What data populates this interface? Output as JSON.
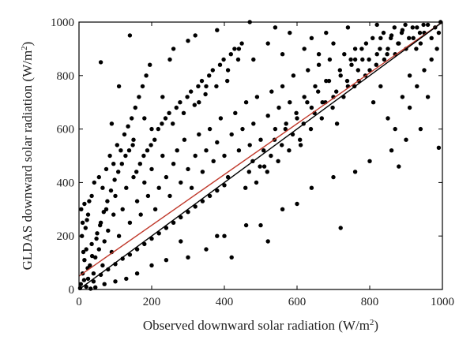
{
  "chart_data": {
    "type": "scatter",
    "xlabel": "Observed downward solar radiation (W/m",
    "xlabel_sup": "2",
    "xlabel_end": ")",
    "ylabel": "GLDAS downward solar radiation (W/m",
    "ylabel_sup": "2",
    "ylabel_end": ")",
    "xlim": [
      0,
      1000
    ],
    "ylim": [
      0,
      1000
    ],
    "x_ticks": [
      0,
      200,
      400,
      600,
      800,
      1000
    ],
    "y_ticks": [
      0,
      200,
      400,
      600,
      800,
      1000
    ],
    "x_tick_labels": [
      "0",
      "200",
      "400",
      "600",
      "800",
      "1000"
    ],
    "y_tick_labels": [
      "0",
      "200",
      "400",
      "600",
      "800",
      "1000"
    ],
    "grid": false,
    "legend": "none",
    "point_color": "#000000",
    "series": [
      {
        "values_xy": [
          [
            5,
            20
          ],
          [
            10,
            60
          ],
          [
            15,
            110
          ],
          [
            20,
            150
          ],
          [
            8,
            200
          ],
          [
            25,
            40
          ],
          [
            30,
            90
          ],
          [
            12,
            140
          ],
          [
            18,
            230
          ],
          [
            35,
            170
          ],
          [
            40,
            60
          ],
          [
            45,
            120
          ],
          [
            50,
            210
          ],
          [
            22,
            260
          ],
          [
            6,
            300
          ],
          [
            28,
            330
          ],
          [
            55,
            150
          ],
          [
            60,
            250
          ],
          [
            65,
            90
          ],
          [
            70,
            180
          ],
          [
            75,
            300
          ],
          [
            80,
            220
          ],
          [
            90,
            140
          ],
          [
            95,
            280
          ],
          [
            100,
            350
          ],
          [
            110,
            200
          ],
          [
            120,
            300
          ],
          [
            130,
            380
          ],
          [
            140,
            250
          ],
          [
            150,
            420
          ],
          [
            160,
            330
          ],
          [
            170,
            280
          ],
          [
            180,
            400
          ],
          [
            190,
            350
          ],
          [
            200,
            450
          ],
          [
            210,
            300
          ],
          [
            220,
            380
          ],
          [
            230,
            500
          ],
          [
            240,
            420
          ],
          [
            250,
            350
          ],
          [
            260,
            470
          ],
          [
            270,
            520
          ],
          [
            280,
            400
          ],
          [
            290,
            560
          ],
          [
            300,
            450
          ],
          [
            310,
            380
          ],
          [
            320,
            500
          ],
          [
            330,
            580
          ],
          [
            340,
            440
          ],
          [
            350,
            520
          ],
          [
            360,
            600
          ],
          [
            370,
            480
          ],
          [
            380,
            550
          ],
          [
            390,
            640
          ],
          [
            400,
            500
          ],
          [
            410,
            420
          ],
          [
            420,
            580
          ],
          [
            430,
            660
          ],
          [
            440,
            520
          ],
          [
            450,
            600
          ],
          [
            460,
            700
          ],
          [
            470,
            540
          ],
          [
            480,
            620
          ],
          [
            490,
            720
          ],
          [
            500,
            560
          ],
          [
            510,
            460
          ],
          [
            520,
            650
          ],
          [
            530,
            740
          ],
          [
            540,
            600
          ],
          [
            550,
            680
          ],
          [
            560,
            760
          ],
          [
            570,
            620
          ],
          [
            580,
            700
          ],
          [
            590,
            800
          ],
          [
            600,
            640
          ],
          [
            610,
            540
          ],
          [
            620,
            720
          ],
          [
            630,
            820
          ],
          [
            640,
            680
          ],
          [
            650,
            760
          ],
          [
            660,
            840
          ],
          [
            670,
            700
          ],
          [
            680,
            780
          ],
          [
            690,
            860
          ],
          [
            700,
            720
          ],
          [
            710,
            620
          ],
          [
            720,
            800
          ],
          [
            730,
            880
          ],
          [
            740,
            760
          ],
          [
            750,
            840
          ],
          [
            760,
            900
          ],
          [
            770,
            780
          ],
          [
            780,
            860
          ],
          [
            790,
            920
          ],
          [
            800,
            820
          ],
          [
            810,
            700
          ],
          [
            820,
            880
          ],
          [
            830,
            940
          ],
          [
            840,
            860
          ],
          [
            850,
            900
          ],
          [
            860,
            950
          ],
          [
            870,
            880
          ],
          [
            880,
            920
          ],
          [
            890,
            970
          ],
          [
            900,
            900
          ],
          [
            910,
            800
          ],
          [
            920,
            940
          ],
          [
            930,
            980
          ],
          [
            940,
            920
          ],
          [
            950,
            960
          ],
          [
            960,
            990
          ],
          [
            970,
            940
          ],
          [
            980,
            980
          ],
          [
            990,
            960
          ],
          [
            995,
            1000
          ],
          [
            140,
            950
          ],
          [
            250,
            860
          ],
          [
            300,
            930
          ],
          [
            440,
            900
          ],
          [
            520,
            920
          ],
          [
            60,
            850
          ],
          [
            110,
            760
          ],
          [
            180,
            640
          ],
          [
            90,
            620
          ],
          [
            230,
            720
          ],
          [
            350,
            760
          ],
          [
            150,
            560
          ],
          [
            200,
            600
          ],
          [
            410,
            820
          ],
          [
            330,
            700
          ],
          [
            480,
            860
          ],
          [
            560,
            880
          ],
          [
            620,
            900
          ],
          [
            680,
            960
          ],
          [
            740,
            980
          ],
          [
            820,
            990
          ],
          [
            300,
            120
          ],
          [
            400,
            200
          ],
          [
            500,
            240
          ],
          [
            560,
            300
          ],
          [
            640,
            380
          ],
          [
            700,
            420
          ],
          [
            760,
            440
          ],
          [
            800,
            480
          ],
          [
            860,
            520
          ],
          [
            900,
            560
          ],
          [
            940,
            600
          ],
          [
            990,
            530
          ],
          [
            880,
            460
          ],
          [
            720,
            230
          ],
          [
            600,
            320
          ],
          [
            520,
            180
          ],
          [
            460,
            240
          ],
          [
            380,
            200
          ],
          [
            350,
            150
          ],
          [
            420,
            120
          ],
          [
            280,
            180
          ],
          [
            240,
            110
          ],
          [
            200,
            90
          ],
          [
            160,
            60
          ],
          [
            130,
            40
          ],
          [
            100,
            30
          ],
          [
            70,
            20
          ],
          [
            45,
            8
          ],
          [
            32,
            3
          ],
          [
            3,
            5
          ],
          [
            14,
            35
          ],
          [
            24,
            80
          ],
          [
            36,
            125
          ],
          [
            48,
            190
          ],
          [
            58,
            240
          ],
          [
            68,
            290
          ],
          [
            78,
            330
          ],
          [
            88,
            370
          ],
          [
            98,
            410
          ],
          [
            108,
            440
          ],
          [
            118,
            470
          ],
          [
            128,
            500
          ],
          [
            138,
            520
          ],
          [
            148,
            540
          ],
          [
            158,
            440
          ],
          [
            168,
            470
          ],
          [
            178,
            500
          ],
          [
            188,
            520
          ],
          [
            198,
            540
          ],
          [
            208,
            560
          ],
          [
            218,
            600
          ],
          [
            228,
            620
          ],
          [
            238,
            640
          ],
          [
            248,
            660
          ],
          [
            258,
            620
          ],
          [
            268,
            680
          ],
          [
            278,
            700
          ],
          [
            288,
            660
          ],
          [
            298,
            720
          ],
          [
            308,
            740
          ],
          [
            318,
            690
          ],
          [
            328,
            760
          ],
          [
            338,
            780
          ],
          [
            348,
            730
          ],
          [
            358,
            800
          ],
          [
            368,
            820
          ],
          [
            378,
            760
          ],
          [
            388,
            840
          ],
          [
            398,
            860
          ],
          [
            408,
            780
          ],
          [
            418,
            880
          ],
          [
            428,
            900
          ],
          [
            438,
            860
          ],
          [
            448,
            920
          ],
          [
            458,
            380
          ],
          [
            468,
            440
          ],
          [
            478,
            480
          ],
          [
            488,
            400
          ],
          [
            498,
            460
          ],
          [
            508,
            520
          ],
          [
            518,
            440
          ],
          [
            528,
            500
          ],
          [
            538,
            560
          ],
          [
            548,
            480
          ],
          [
            558,
            540
          ],
          [
            568,
            600
          ],
          [
            578,
            520
          ],
          [
            588,
            580
          ],
          [
            598,
            660
          ],
          [
            608,
            560
          ],
          [
            618,
            620
          ],
          [
            628,
            700
          ],
          [
            638,
            600
          ],
          [
            648,
            660
          ],
          [
            658,
            740
          ],
          [
            668,
            640
          ],
          [
            678,
            700
          ],
          [
            688,
            780
          ],
          [
            698,
            680
          ],
          [
            708,
            740
          ],
          [
            718,
            820
          ],
          [
            728,
            720
          ],
          [
            738,
            780
          ],
          [
            748,
            860
          ],
          [
            758,
            760
          ],
          [
            768,
            820
          ],
          [
            778,
            900
          ],
          [
            788,
            800
          ],
          [
            798,
            860
          ],
          [
            808,
            940
          ],
          [
            818,
            840
          ],
          [
            828,
            900
          ],
          [
            838,
            960
          ],
          [
            848,
            880
          ],
          [
            858,
            940
          ],
          [
            868,
            980
          ],
          [
            878,
            920
          ],
          [
            888,
            960
          ],
          [
            898,
            990
          ],
          [
            908,
            940
          ],
          [
            918,
            980
          ],
          [
            928,
            900
          ],
          [
            938,
            960
          ],
          [
            948,
            990
          ],
          [
            20,
            10
          ],
          [
            40,
            30
          ],
          [
            60,
            55
          ],
          [
            80,
            75
          ],
          [
            100,
            95
          ],
          [
            120,
            115
          ],
          [
            140,
            130
          ],
          [
            160,
            150
          ],
          [
            180,
            170
          ],
          [
            200,
            190
          ],
          [
            220,
            210
          ],
          [
            240,
            230
          ],
          [
            260,
            250
          ],
          [
            280,
            270
          ],
          [
            300,
            290
          ],
          [
            320,
            310
          ],
          [
            340,
            330
          ],
          [
            360,
            350
          ],
          [
            380,
            370
          ],
          [
            400,
            390
          ],
          [
            10,
            250
          ],
          [
            15,
            320
          ],
          [
            25,
            280
          ],
          [
            35,
            350
          ],
          [
            42,
            400
          ],
          [
            55,
            420
          ],
          [
            65,
            380
          ],
          [
            75,
            450
          ],
          [
            85,
            500
          ],
          [
            95,
            470
          ],
          [
            105,
            540
          ],
          [
            115,
            520
          ],
          [
            125,
            580
          ],
          [
            135,
            610
          ],
          [
            145,
            640
          ],
          [
            155,
            680
          ],
          [
            165,
            720
          ],
          [
            175,
            760
          ],
          [
            185,
            800
          ],
          [
            195,
            840
          ],
          [
            260,
            900
          ],
          [
            320,
            950
          ],
          [
            380,
            970
          ],
          [
            470,
            1000
          ],
          [
            540,
            980
          ],
          [
            580,
            960
          ],
          [
            640,
            940
          ],
          [
            700,
            920
          ],
          [
            660,
            880
          ],
          [
            760,
            860
          ],
          [
            830,
            760
          ],
          [
            850,
            640
          ],
          [
            870,
            600
          ],
          [
            890,
            720
          ],
          [
            910,
            680
          ],
          [
            930,
            760
          ],
          [
            950,
            820
          ],
          [
            970,
            860
          ],
          [
            985,
            900
          ],
          [
            960,
            720
          ]
        ]
      }
    ],
    "regression_lines": [
      {
        "color": "#c0392b",
        "x": [
          0,
          1000
        ],
        "y": [
          50,
          1000
        ]
      },
      {
        "color": "#000000",
        "x": [
          0,
          1000
        ],
        "y": [
          0,
          1000
        ]
      }
    ]
  }
}
